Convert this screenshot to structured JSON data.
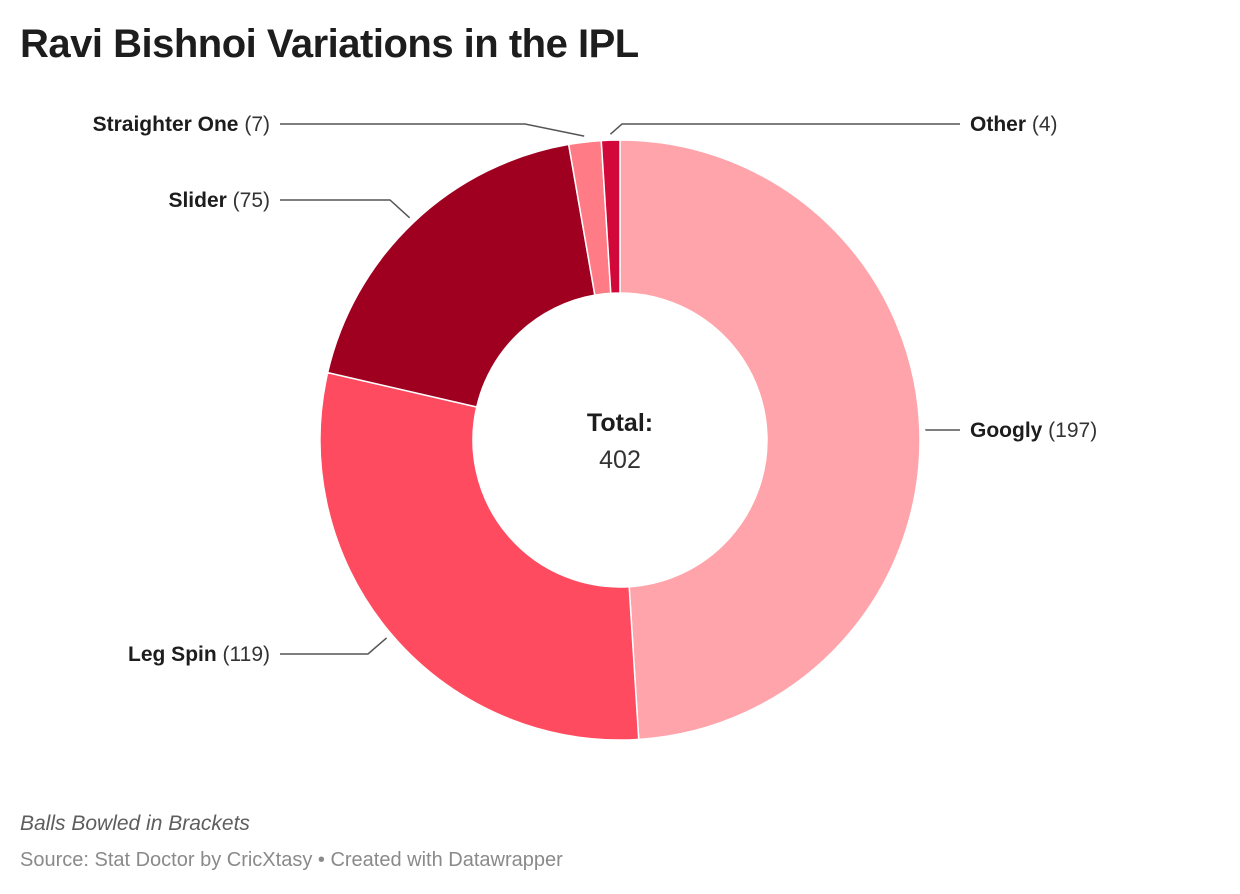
{
  "chart_data": {
    "type": "pie",
    "donut": true,
    "title": "Ravi Bishnoi Variations in the IPL",
    "categories": [
      "Googly",
      "Leg Spin",
      "Slider",
      "Straighter One",
      "Other"
    ],
    "values": [
      197,
      119,
      75,
      7,
      4
    ],
    "colors": [
      "#ffa4aa",
      "#ff4b5f",
      "#a00020",
      "#ff7b85",
      "#d2073a"
    ],
    "center_label": "Total:",
    "center_value": "402",
    "note": "Balls Bowled in Brackets",
    "source": "Source: Stat Doctor by CricXtasy • Created with Datawrapper"
  }
}
